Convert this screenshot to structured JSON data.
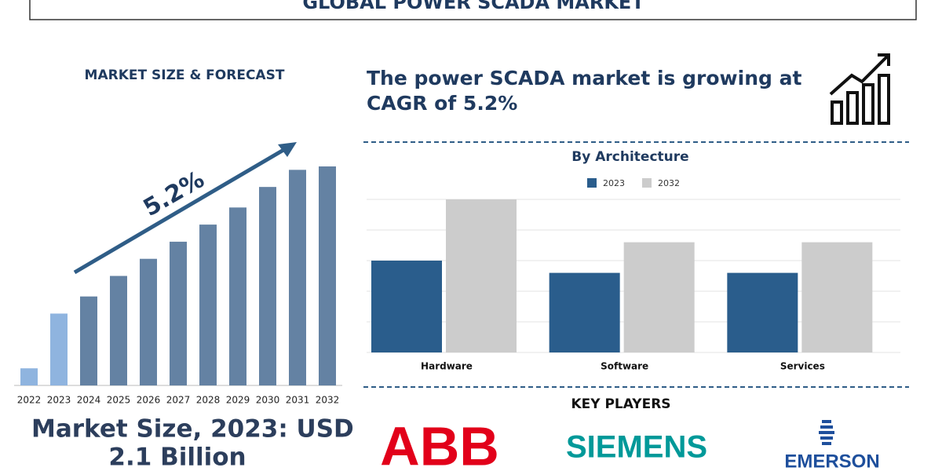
{
  "header": {
    "title": "GLOBAL POWER SCADA MARKET"
  },
  "headline": [
    "The power SCADA market is growing at",
    "CAGR of 5.2%"
  ],
  "market_size": [
    "Market Size, 2023: USD",
    "2.1 Billion"
  ],
  "key_players": {
    "title": "KEY PLAYERS",
    "companies": [
      "ABB",
      "SIEMENS",
      "EMERSON"
    ]
  },
  "chart_data": [
    {
      "type": "bar",
      "title": "MARKET SIZE & FORECAST",
      "annotation": "5.2%",
      "categories": [
        "2022",
        "2023",
        "2024",
        "2025",
        "2026",
        "2027",
        "2028",
        "2029",
        "2030",
        "2031",
        "2032"
      ],
      "values": [
        0.5,
        2.1,
        2.6,
        3.2,
        3.7,
        4.2,
        4.7,
        5.2,
        5.8,
        6.3,
        6.4
      ],
      "colors": [
        "#8fb4df",
        "#8fb4df",
        "#6482a3",
        "#6482a3",
        "#6482a3",
        "#6482a3",
        "#6482a3",
        "#6482a3",
        "#6482a3",
        "#6482a3",
        "#6482a3"
      ]
    },
    {
      "type": "grouped-bar",
      "title": "By Architecture",
      "categories": [
        "Hardware",
        "Software",
        "Services"
      ],
      "series": [
        {
          "name": "2023",
          "color": "#2a5d8c",
          "values": [
            3.0,
            2.6,
            2.6
          ]
        },
        {
          "name": "2032",
          "color": "#cccccc",
          "values": [
            5.0,
            3.6,
            3.6
          ]
        }
      ],
      "ylim": [
        0,
        5
      ],
      "yticks": [
        0,
        1,
        2,
        3,
        4,
        5
      ],
      "grid": true
    }
  ]
}
